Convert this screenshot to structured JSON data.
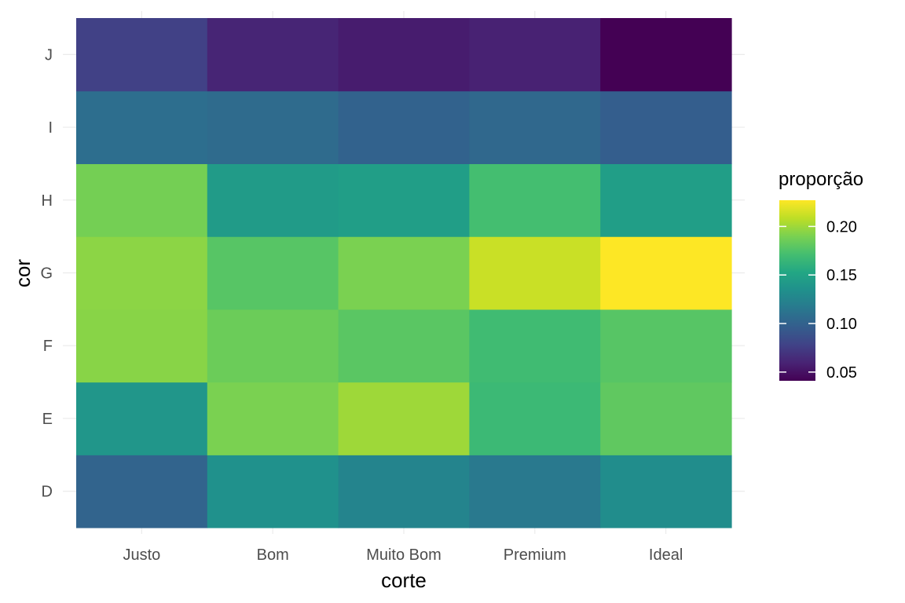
{
  "chart_data": {
    "type": "heatmap",
    "xlabel": "corte",
    "ylabel": "cor",
    "x_categories": [
      "Justo",
      "Bom",
      "Muito Bom",
      "Premium",
      "Ideal"
    ],
    "y_categories": [
      "D",
      "E",
      "F",
      "G",
      "H",
      "I",
      "J"
    ],
    "values": [
      [
        0.101,
        0.135,
        0.125,
        0.116,
        0.132
      ],
      [
        0.139,
        0.19,
        0.2,
        0.167,
        0.181
      ],
      [
        0.194,
        0.185,
        0.179,
        0.169,
        0.178
      ],
      [
        0.195,
        0.178,
        0.19,
        0.212,
        0.227
      ],
      [
        0.188,
        0.143,
        0.145,
        0.171,
        0.145
      ],
      [
        0.108,
        0.106,
        0.1,
        0.104,
        0.097
      ],
      [
        0.077,
        0.061,
        0.056,
        0.059,
        0.041
      ]
    ],
    "legend": {
      "title": "proporção",
      "ticks": [
        "0.05",
        "0.10",
        "0.15",
        "0.20"
      ],
      "tick_values": [
        0.05,
        0.1,
        0.15,
        0.2
      ],
      "min": 0.041,
      "max": 0.227,
      "colormap": "viridis",
      "placement": "right"
    },
    "grid": true
  }
}
